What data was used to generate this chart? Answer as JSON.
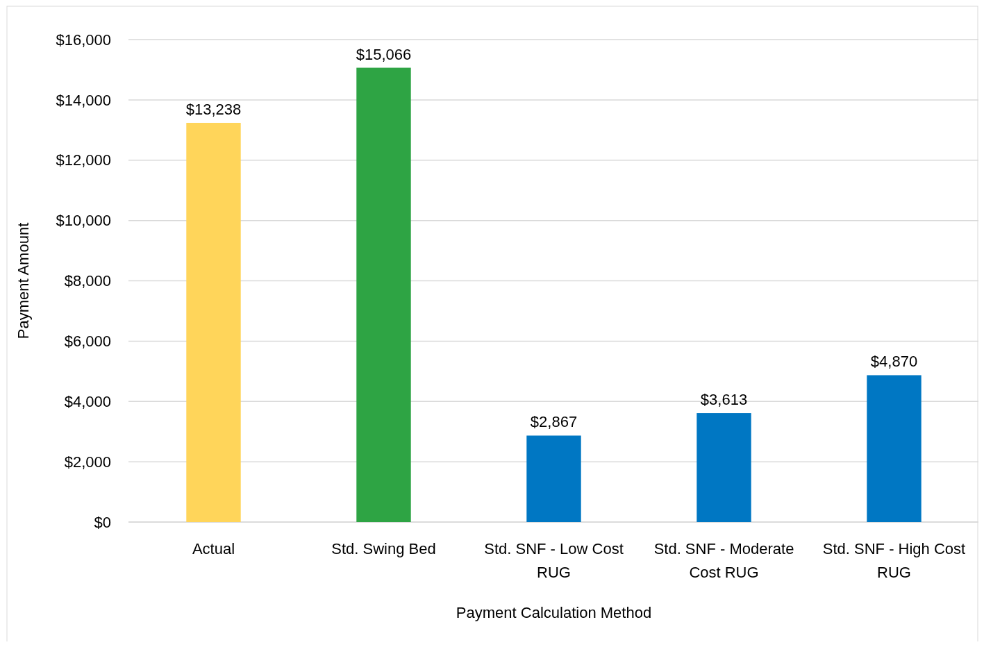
{
  "chart_data": {
    "type": "bar",
    "xlabel": "Payment Calculation Method",
    "ylabel": "Payment Amount",
    "categories": [
      "Actual",
      "Std. Swing Bed",
      "Std. SNF - Low Cost RUG",
      "Std. SNF - Moderate Cost RUG",
      "Std. SNF - High Cost RUG"
    ],
    "values": [
      13238,
      15066,
      2867,
      3613,
      4870
    ],
    "colors": [
      "#ffd55a",
      "#2ea444",
      "#0077c3",
      "#0077c3",
      "#0077c3"
    ],
    "value_labels": [
      "$13,238",
      "$15,066",
      "$2,867",
      "$3,613",
      "$4,870"
    ],
    "ylim": [
      0,
      16000
    ],
    "yticks": [
      {
        "value": 0,
        "label": "$0"
      },
      {
        "value": 2000,
        "label": "$2,000"
      },
      {
        "value": 4000,
        "label": "$4,000"
      },
      {
        "value": 6000,
        "label": "$6,000"
      },
      {
        "value": 8000,
        "label": "$8,000"
      },
      {
        "value": 10000,
        "label": "$10,000"
      },
      {
        "value": 12000,
        "label": "$12,000"
      },
      {
        "value": 14000,
        "label": "$14,000"
      },
      {
        "value": 16000,
        "label": "$16,000"
      }
    ],
    "grid": "y"
  }
}
